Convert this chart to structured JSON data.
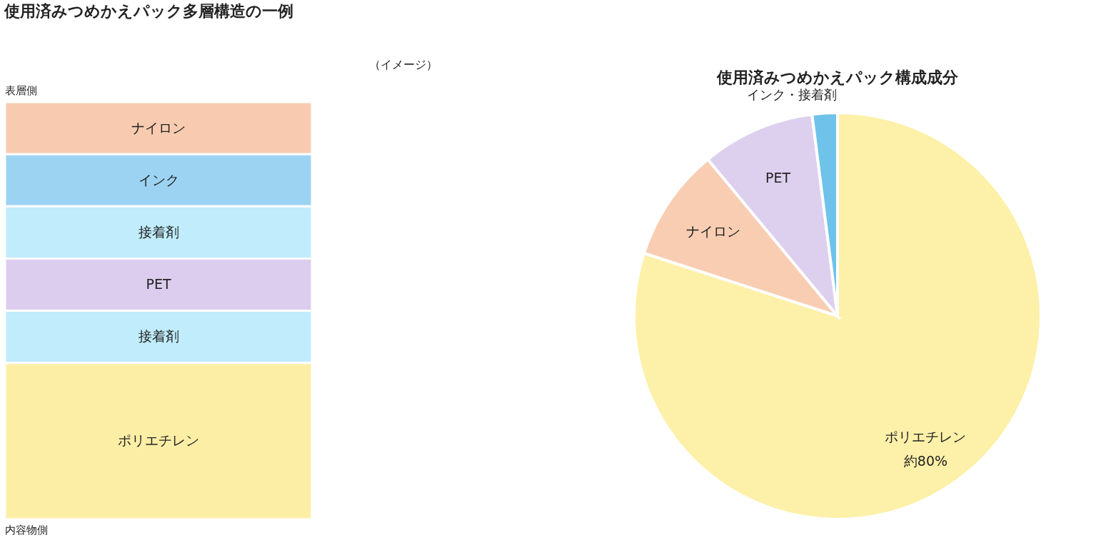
{
  "chart_data": [
    {
      "type": "other",
      "title": "使用済みつめかえパック多層構造の一例",
      "subtitle": "（イメージ）",
      "annotations": [
        "表層側",
        "内容物側"
      ],
      "categories": [
        "ナイロン",
        "インク",
        "接着剤",
        "PET",
        "接着剤",
        "ポリエチレン"
      ],
      "colors": [
        "#f8cbb0",
        "#9dd3f2",
        "#c0ecfc",
        "#dccdee",
        "#c0ecfc",
        "#fdeea6"
      ]
    },
    {
      "type": "pie",
      "title": "使用済みつめかえパック構成成分",
      "categories": [
        "ポリエチレン",
        "ナイロン",
        "PET",
        "インク・接着剤"
      ],
      "values": [
        80,
        9,
        9,
        2
      ],
      "value_labels": [
        "約80%",
        null,
        null,
        null
      ],
      "colors": [
        "#fdf0a8",
        "#f8cdb2",
        "#ddd0ee",
        "#6fc2ea"
      ]
    }
  ]
}
